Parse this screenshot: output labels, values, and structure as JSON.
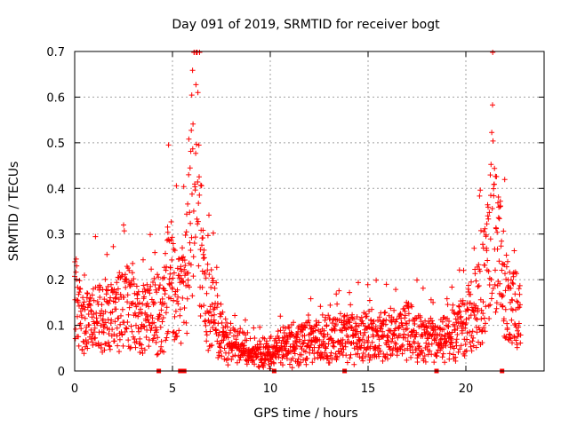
{
  "chart_data": {
    "type": "scatter",
    "title": "Day 091 of 2019, SRMTID for receiver bogt",
    "xlabel": "GPS time / hours",
    "ylabel": "SRMTID / TECUs",
    "xlim": [
      0,
      24
    ],
    "ylim": [
      0,
      0.7
    ],
    "xticks": [
      "0",
      "5",
      "10",
      "15",
      "20"
    ],
    "xtick_values": [
      0,
      5,
      10,
      15,
      20
    ],
    "yticks": [
      "0",
      "0.1",
      "0.2",
      "0.3",
      "0.4",
      "0.5",
      "0.6",
      "0.7"
    ],
    "ytick_values": [
      0,
      0.1,
      0.2,
      0.3,
      0.4,
      0.5,
      0.6,
      0.7
    ],
    "grid": true,
    "marker": "+",
    "series_color": "#ff0000",
    "profile": [
      [
        0.0,
        0.17
      ],
      [
        0.5,
        0.1
      ],
      [
        1.0,
        0.12
      ],
      [
        1.5,
        0.12
      ],
      [
        2.0,
        0.12
      ],
      [
        2.5,
        0.14
      ],
      [
        3.0,
        0.14
      ],
      [
        3.5,
        0.12
      ],
      [
        4.0,
        0.12
      ],
      [
        4.5,
        0.13
      ],
      [
        4.8,
        0.22
      ],
      [
        5.1,
        0.18
      ],
      [
        5.4,
        0.15
      ],
      [
        5.7,
        0.2
      ],
      [
        5.9,
        0.32
      ],
      [
        6.15,
        0.58
      ],
      [
        6.4,
        0.3
      ],
      [
        6.7,
        0.15
      ],
      [
        7.0,
        0.14
      ],
      [
        7.5,
        0.08
      ],
      [
        8.0,
        0.06
      ],
      [
        9.0,
        0.04
      ],
      [
        10.0,
        0.04
      ],
      [
        11.0,
        0.06
      ],
      [
        12.0,
        0.07
      ],
      [
        13.0,
        0.07
      ],
      [
        14.0,
        0.08
      ],
      [
        15.0,
        0.08
      ],
      [
        16.0,
        0.08
      ],
      [
        17.0,
        0.09
      ],
      [
        18.0,
        0.07
      ],
      [
        18.5,
        0.06
      ],
      [
        19.0,
        0.07
      ],
      [
        19.5,
        0.09
      ],
      [
        20.0,
        0.11
      ],
      [
        20.5,
        0.14
      ],
      [
        21.0,
        0.2
      ],
      [
        21.4,
        0.33
      ],
      [
        21.8,
        0.22
      ],
      [
        22.2,
        0.14
      ],
      [
        22.8,
        0.12
      ]
    ],
    "gap_markers_x": [
      4.3,
      5.4,
      5.6,
      10.2,
      13.8,
      18.5,
      21.85
    ],
    "time_range": [
      0.0,
      22.8
    ],
    "sample_step": 0.0125
  }
}
